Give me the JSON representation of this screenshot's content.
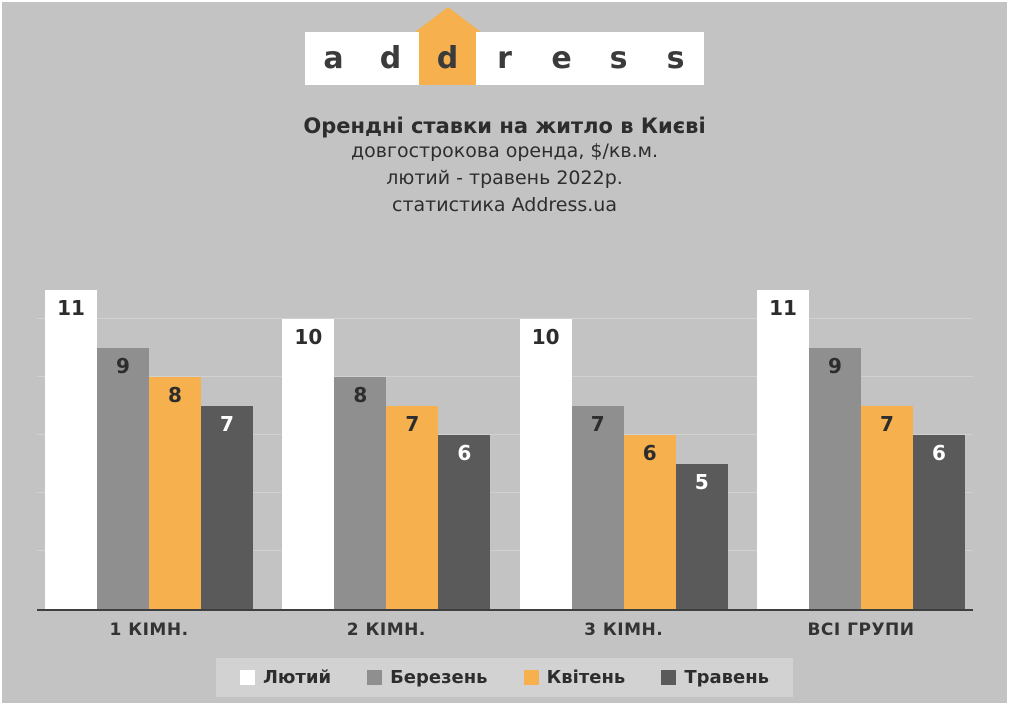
{
  "colors": {
    "background": "#c3c3c3",
    "accent_orange": "#f6b04e",
    "bar_white": "#ffffff",
    "bar_gray": "#8f8f8f",
    "bar_dark": "#5a5a5a",
    "text_dark": "#2d2d2d",
    "gridline": "#d1d1d1",
    "legend_bg": "#d2d2d2",
    "axis_line": "#3f3f3f"
  },
  "logo": {
    "letters": [
      "a",
      "d",
      "d",
      "r",
      "e",
      "s",
      "s"
    ],
    "highlight_index": 2,
    "arrow_icon": "up-arrow-icon"
  },
  "header": {
    "title": "Орендні ставки на житло в Києві",
    "subtitle1": "довгострокова оренда, $/кв.м.",
    "subtitle2": "лютий - травень 2022р.",
    "subtitle3": "статистика Address.ua"
  },
  "chart_data": {
    "type": "bar",
    "title": "Орендні ставки на житло в Києві",
    "subtitle": "довгострокова оренда, $/кв.м., лютий - травень 2022р.",
    "categories": [
      "1 КІМН.",
      "2 КІМН.",
      "3 КІМН.",
      "ВСІ ГРУПИ"
    ],
    "series": [
      {
        "name": "Лютий",
        "color": "#ffffff",
        "values": [
          11,
          10,
          10,
          11
        ]
      },
      {
        "name": "Березень",
        "color": "#8f8f8f",
        "values": [
          9,
          8,
          7,
          9
        ]
      },
      {
        "name": "Квітень",
        "color": "#f6b04e",
        "values": [
          8,
          7,
          6,
          7
        ]
      },
      {
        "name": "Травень",
        "color": "#5a5a5a",
        "values": [
          7,
          6,
          5,
          6
        ]
      }
    ],
    "ylim": [
      0,
      11.5
    ],
    "gridlines": [
      2,
      4,
      6,
      8,
      10
    ],
    "grid": true,
    "legend_position": "bottom",
    "value_labels": true
  }
}
